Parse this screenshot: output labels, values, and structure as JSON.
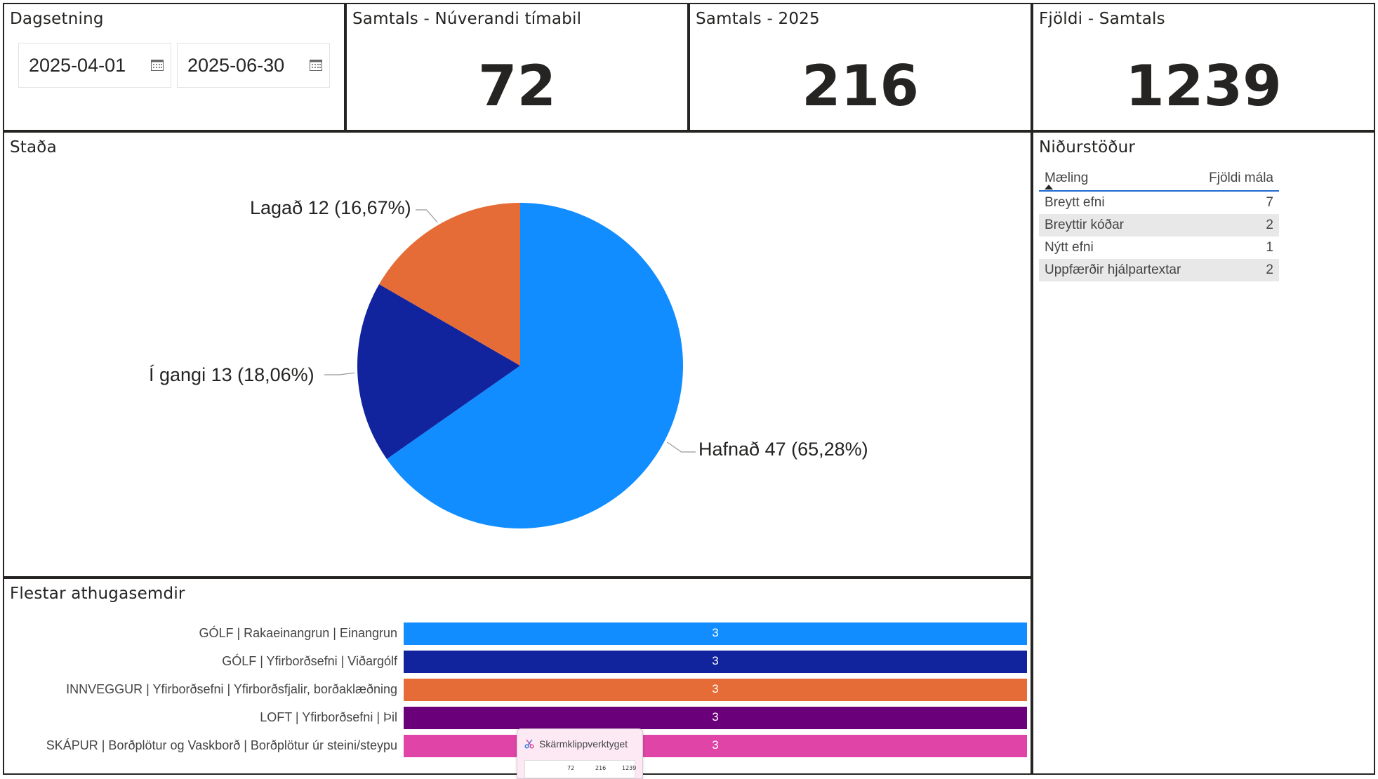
{
  "date_slicer": {
    "title": "Dagsetning",
    "start": "2025-04-01",
    "end": "2025-06-30",
    "icon": "calendar-icon"
  },
  "kpis": [
    {
      "title": "Samtals - Núverandi tímabil",
      "value": "72"
    },
    {
      "title": "Samtals - 2025",
      "value": "216"
    },
    {
      "title": "Fjöldi - Samtals",
      "value": "1239"
    }
  ],
  "status_chart": {
    "title": "Staða",
    "chart_data": {
      "type": "pie",
      "slices": [
        {
          "label": "Hafnað",
          "value": 47,
          "pct": "65,28%",
          "color": "#118dff"
        },
        {
          "label": "Í gangi",
          "value": 13,
          "pct": "18,06%",
          "color": "#12239e"
        },
        {
          "label": "Lagað",
          "value": 12,
          "pct": "16,67%",
          "color": "#e66c37"
        }
      ],
      "labels": {
        "hafnad": "Hafnað 47 (65,28%)",
        "igangi": "Í gangi 13 (18,06%)",
        "lagad": "Lagað 12 (16,67%)"
      }
    }
  },
  "results_table": {
    "title": "Niðurstöður",
    "columns": [
      "Mæling",
      "Fjöldi mála"
    ],
    "rows": [
      {
        "name": "Breytt efni",
        "count": "7"
      },
      {
        "name": "Breyttir kóðar",
        "count": "2"
      },
      {
        "name": "Nýtt efni",
        "count": "1"
      },
      {
        "name": "Uppfærðir hjálpartextar",
        "count": "2"
      }
    ]
  },
  "comments_chart": {
    "title": "Flestar athugasemdir",
    "chart_data": {
      "type": "bar",
      "orientation": "horizontal",
      "categories": [
        "GÓLF | Rakaeinangrun | Einangrun",
        "GÓLF | Yfirborðsefni | Viðargólf",
        "INNVEGGUR | Yfirborðsefni | Yfirborðsfjalir, borðaklæðning",
        "LOFT | Yfirborðsefni | Þil",
        "SKÁPUR | Borðplötur og Vaskborð | Borðplötur úr steini/steypu"
      ],
      "values": [
        3,
        3,
        3,
        3,
        3
      ],
      "value_labels": [
        "3",
        "3",
        "3",
        "3",
        "3"
      ],
      "colors": [
        "#118dff",
        "#12239e",
        "#e66c37",
        "#6b007b",
        "#e044a7"
      ],
      "xlim": [
        0,
        3
      ]
    }
  },
  "snipping_tool": {
    "title": "Skärmklippverktyget",
    "thumb_values": [
      "72",
      "216",
      "1239"
    ]
  }
}
